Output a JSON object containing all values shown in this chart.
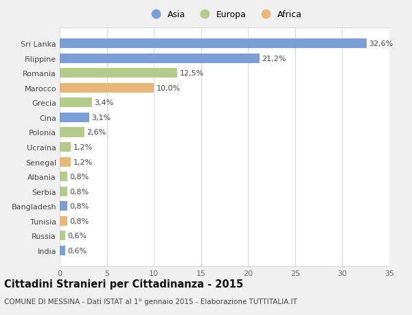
{
  "categories": [
    "India",
    "Russia",
    "Tunisia",
    "Bangladesh",
    "Serbia",
    "Albania",
    "Senegal",
    "Ucraina",
    "Polonia",
    "Cina",
    "Grecia",
    "Marocco",
    "Romania",
    "Filippine",
    "Sri Lanka"
  ],
  "values": [
    0.6,
    0.6,
    0.8,
    0.8,
    0.8,
    0.8,
    1.2,
    1.2,
    2.6,
    3.1,
    3.4,
    10.0,
    12.5,
    21.2,
    32.6
  ],
  "labels": [
    "0,6%",
    "0,6%",
    "0,8%",
    "0,8%",
    "0,8%",
    "0,8%",
    "1,2%",
    "1,2%",
    "2,6%",
    "3,1%",
    "3,4%",
    "10,0%",
    "12,5%",
    "21,2%",
    "32,6%"
  ],
  "colors": [
    "#7b9fd4",
    "#b5cb8c",
    "#e8b87a",
    "#7b9fd4",
    "#b5cb8c",
    "#b5cb8c",
    "#e8b87a",
    "#b5cb8c",
    "#b5cb8c",
    "#7b9fd4",
    "#b5cb8c",
    "#e8b87a",
    "#b5cb8c",
    "#7b9fd4",
    "#7b9fd4"
  ],
  "legend_labels": [
    "Asia",
    "Europa",
    "Africa"
  ],
  "legend_colors": [
    "#7b9fd4",
    "#b5cb8c",
    "#e8b87a"
  ],
  "title": "Cittadini Stranieri per Cittadinanza - 2015",
  "subtitle": "COMUNE DI MESSINA - Dati ISTAT al 1° gennaio 2015 - Elaborazione TUTTITALIA.IT",
  "xlim": [
    0,
    35
  ],
  "xticks": [
    0,
    5,
    10,
    15,
    20,
    25,
    30,
    35
  ],
  "bg_color": "#f0f0f0",
  "plot_bg_color": "#ffffff",
  "grid_color": "#d8d8d8",
  "bar_height": 0.65,
  "label_fontsize": 8,
  "tick_fontsize": 8,
  "title_fontsize": 10.5,
  "subtitle_fontsize": 7.5
}
